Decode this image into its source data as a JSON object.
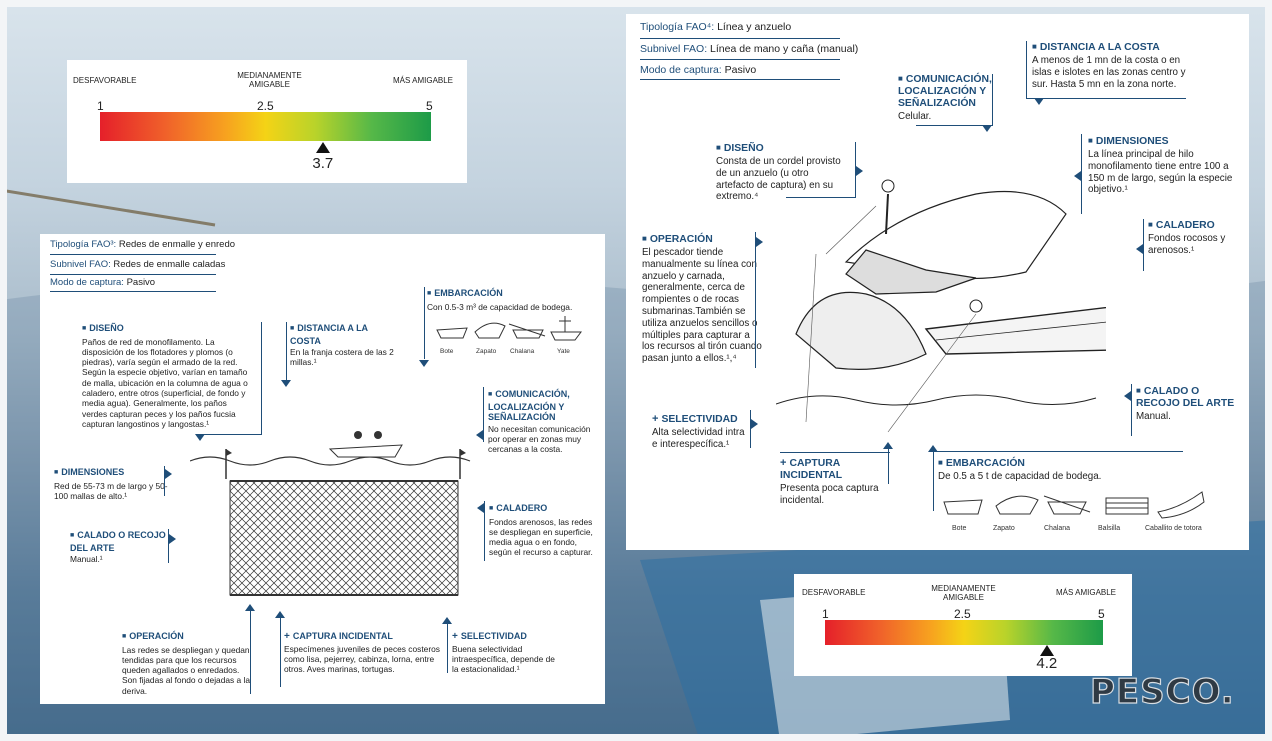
{
  "scale_labels": {
    "unfavorable": "DESFAVORABLE",
    "medium": "MEDIANAMENTE AMIGABLE",
    "friendly": "MÁS AMIGABLE",
    "min": "1",
    "mid": "2.5",
    "max": "5"
  },
  "left": {
    "rating": {
      "value": 3.7,
      "value_label": "3.7"
    },
    "meta": [
      {
        "key": "Tipología FAO³:",
        "value": "Redes de enmalle y enredo"
      },
      {
        "key": "Subnivel FAO:",
        "value": "Redes de enmalle caladas"
      },
      {
        "key": "Modo de captura:",
        "value": "Pasivo"
      }
    ],
    "diseno": {
      "title": "DISEÑO",
      "text": "Paños de red de monofilamento. La disposición de los flotadores y plomos (o piedras), varía según el armado de la red. Según la especie objetivo, varían en tamaño de malla, ubicación en la columna de agua o caladero, entre otros (superficial, de fondo y media agua). Generalmente, los paños verdes capturan peces y los paños fucsia capturan langostinos y langostas.¹"
    },
    "distancia": {
      "title": "DISTANCIA A LA COSTA",
      "text": "En la franja costera de las 2 millas.¹"
    },
    "embarcacion": {
      "title": "EMBARCACIÓN",
      "text": "Con 0.5-3 m³ de capacidad de bodega.",
      "boats": [
        "Bote",
        "Zapato",
        "Chalana",
        "Yate"
      ]
    },
    "comunicacion": {
      "title": "COMUNICACIÓN, LOCALIZACIÓN Y SEÑALIZACIÓN",
      "text": "No necesitan comunicación por operar en zonas muy cercanas a la costa."
    },
    "dimensiones": {
      "title": "DIMENSIONES",
      "text": "Red de 55-73 m de largo y 50-100 mallas de alto.¹"
    },
    "calado": {
      "title": "CALADO O RECOJO DEL ARTE",
      "text": "Manual.¹"
    },
    "caladero": {
      "title": "CALADERO",
      "text": "Fondos arenosos, las redes se despliegan en superficie, media agua o en fondo, según el recurso a capturar."
    },
    "operacion": {
      "title": "OPERACIÓN",
      "text": "Las redes se despliegan y quedan tendidas para que los recursos queden agallados o enredados. Son fijadas al fondo o dejadas a la deriva."
    },
    "captura": {
      "title": "CAPTURA INCIDENTAL",
      "text": "Especímenes juveniles de peces costeros como lisa, pejerrey, cabinza, lorna, entre otros. Aves marinas, tortugas."
    },
    "selectividad": {
      "title": "SELECTIVIDAD",
      "text": "Buena selectividad intraespecífica, depende de la estacionalidad.¹"
    }
  },
  "right": {
    "rating": {
      "value": 4.2,
      "value_label": "4.2"
    },
    "meta": [
      {
        "key": "Tipología FAO⁴:",
        "value": "Línea y anzuelo"
      },
      {
        "key": "Subnivel FAO:",
        "value": "Línea de mano y caña (manual)"
      },
      {
        "key": "Modo de captura:",
        "value": "Pasivo"
      }
    ],
    "distancia": {
      "title": "DISTANCIA A LA COSTA",
      "text": "A menos de 1 mn de la costa o en islas e islotes en las zonas centro y sur. Hasta 5 mn en la zona norte."
    },
    "comunicacion": {
      "title": "COMUNICACIÓN, LOCALIZACIÓN Y SEÑALIZACIÓN",
      "text": "Celular."
    },
    "diseno": {
      "title": "DISEÑO",
      "text": "Consta de un cordel provisto de un anzuelo (u otro artefacto de captura) en su extremo.⁴"
    },
    "dimensiones": {
      "title": "DIMENSIONES",
      "text": "La línea principal de hilo monofilamento tiene entre 100 a 150 m de largo, según la especie objetivo.¹"
    },
    "operacion": {
      "title": "OPERACIÓN",
      "text": "El pescador tiende manualmente su línea con anzuelo y carnada, generalmente, cerca de rompientes o de rocas submarinas.También se utiliza anzuelos sencillos o múltiples para capturar a los recursos al tirón cuando pasan junto a ellos.¹,⁴"
    },
    "caladero": {
      "title": "CALADERO",
      "text": "Fondos rocosos y arenosos.¹"
    },
    "calado": {
      "title": "CALADO O RECOJO DEL ARTE",
      "text": "Manual."
    },
    "selectividad": {
      "title": "SELECTIVIDAD",
      "text": "Alta selectividad intra e interespecífica.¹"
    },
    "captura": {
      "title": "CAPTURA INCIDENTAL",
      "text": "Presenta poca captura incidental."
    },
    "embarcacion": {
      "title": "EMBARCACIÓN",
      "text": "De 0.5 a 5 t de capacidad de bodega.",
      "boats": [
        "Bote",
        "Zapato",
        "Chalana",
        "Balsilla",
        "Caballito de totora"
      ]
    }
  },
  "brand": "PESCO.",
  "colors": {
    "accent": "#1f4e79",
    "scale_low": "#e5202a",
    "scale_mid": "#f4d316",
    "scale_high": "#1d9b48"
  }
}
